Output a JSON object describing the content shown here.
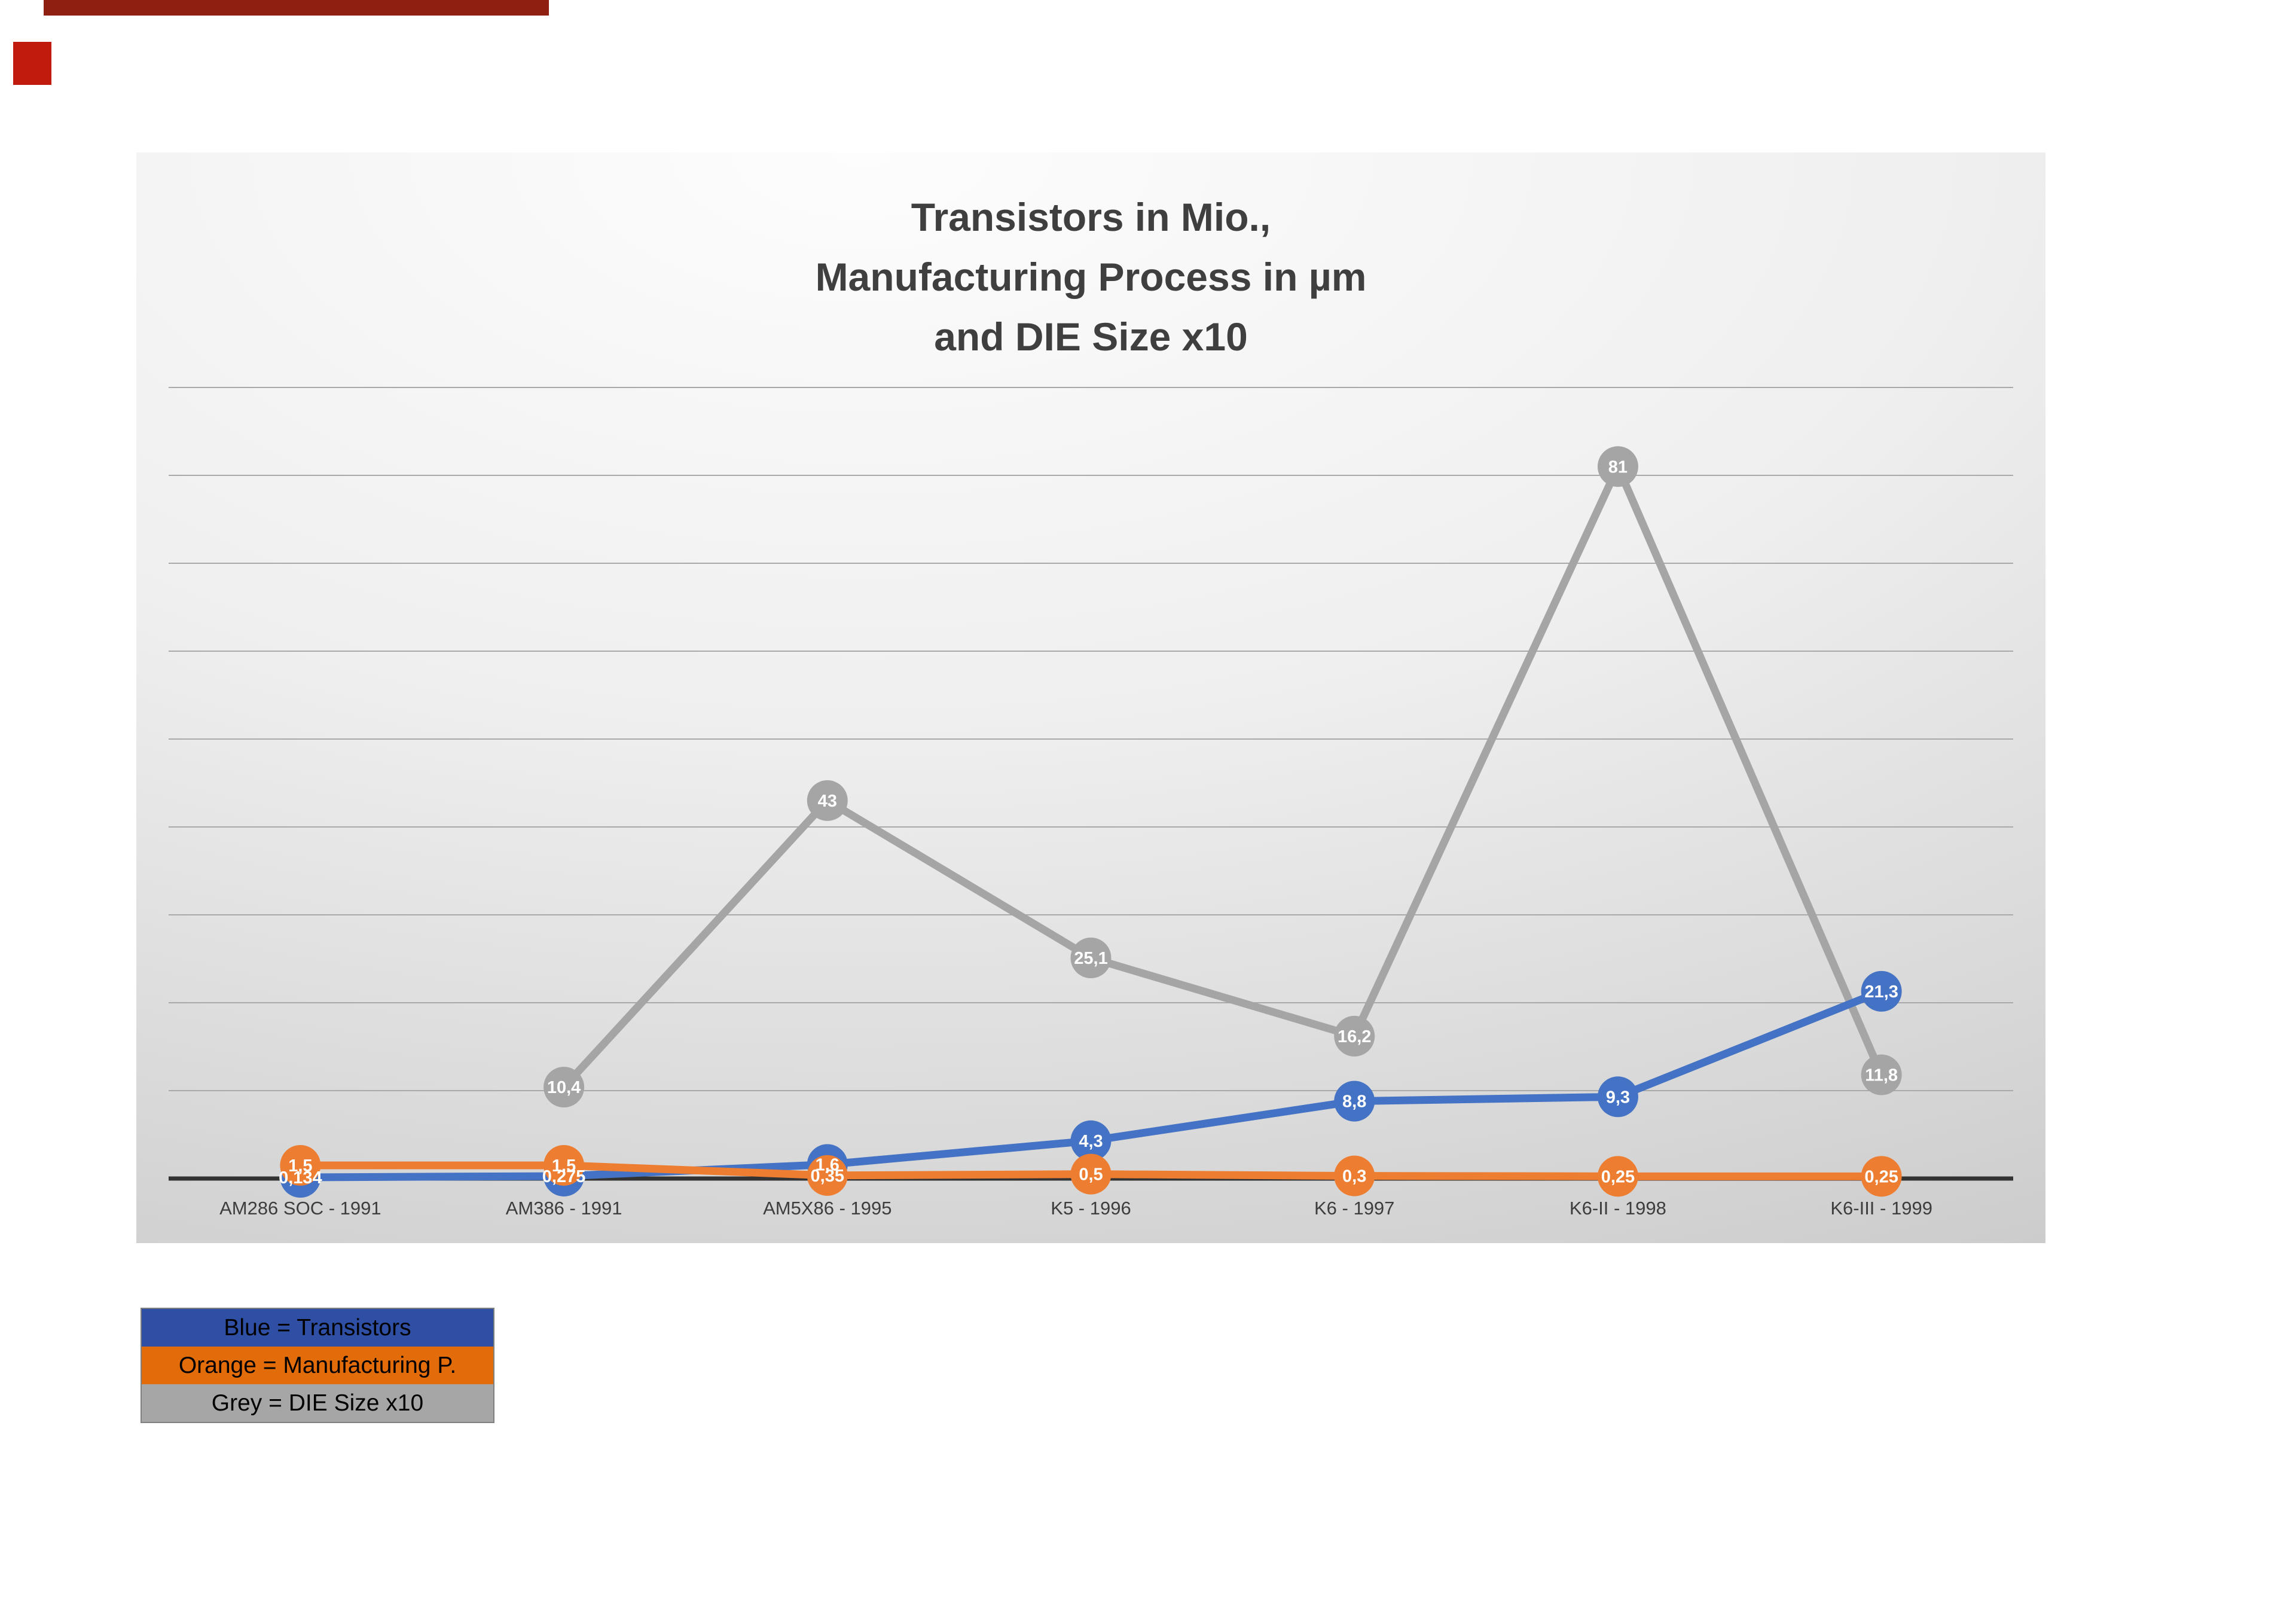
{
  "artifacts": {
    "top_strip_color": "#8F2011",
    "corner_square_color": "#C11B0E"
  },
  "chart_data": {
    "type": "line",
    "title": "Transistors in Mio., Manufacturing Process in µm and DIE Size x10",
    "title_lines": [
      "Transistors in Mio.,",
      "Manufacturing Process in µm",
      "and DIE Size x10"
    ],
    "categories": [
      "AM286 SOC - 1991",
      "AM386 - 1991",
      "AM5X86 - 1995",
      "K5 - 1996",
      "K6 - 1997",
      "K6-II - 1998",
      "K6-III - 1999"
    ],
    "series": [
      {
        "name": "Transistors",
        "color": "#4472C4",
        "values": [
          0.134,
          0.275,
          1.6,
          4.3,
          8.8,
          9.3,
          21.3
        ],
        "labels": [
          "0,134",
          "0,275",
          "1,6",
          "4,3",
          "8,8",
          "9,3",
          "21,3"
        ]
      },
      {
        "name": "Manufacturing P.",
        "color": "#ED7D31",
        "values": [
          1.5,
          1.5,
          0.35,
          0.5,
          0.3,
          0.25,
          0.25
        ],
        "labels": [
          "1,5",
          "1,5",
          "0,35",
          "0,5",
          "0,3",
          "0,25",
          "0,25"
        ]
      },
      {
        "name": "DIE Size x10",
        "color": "#A5A5A5",
        "values": [
          null,
          10.4,
          43,
          25.1,
          16.2,
          81,
          11.8
        ],
        "labels": [
          "",
          "10,4",
          "43",
          "25,1",
          "16,2",
          "81",
          "11,8"
        ]
      }
    ],
    "ylim": [
      0,
      90
    ],
    "grid_step": 10,
    "grid": true,
    "legend_position": "bottom-left",
    "legend": [
      {
        "label": "Blue = Transistors",
        "color": "#2E4FA3"
      },
      {
        "label": "Orange = Manufacturing P.",
        "color": "#E26B0A"
      },
      {
        "label": "Grey = DIE Size x10",
        "color": "#A6A6A6"
      }
    ]
  }
}
